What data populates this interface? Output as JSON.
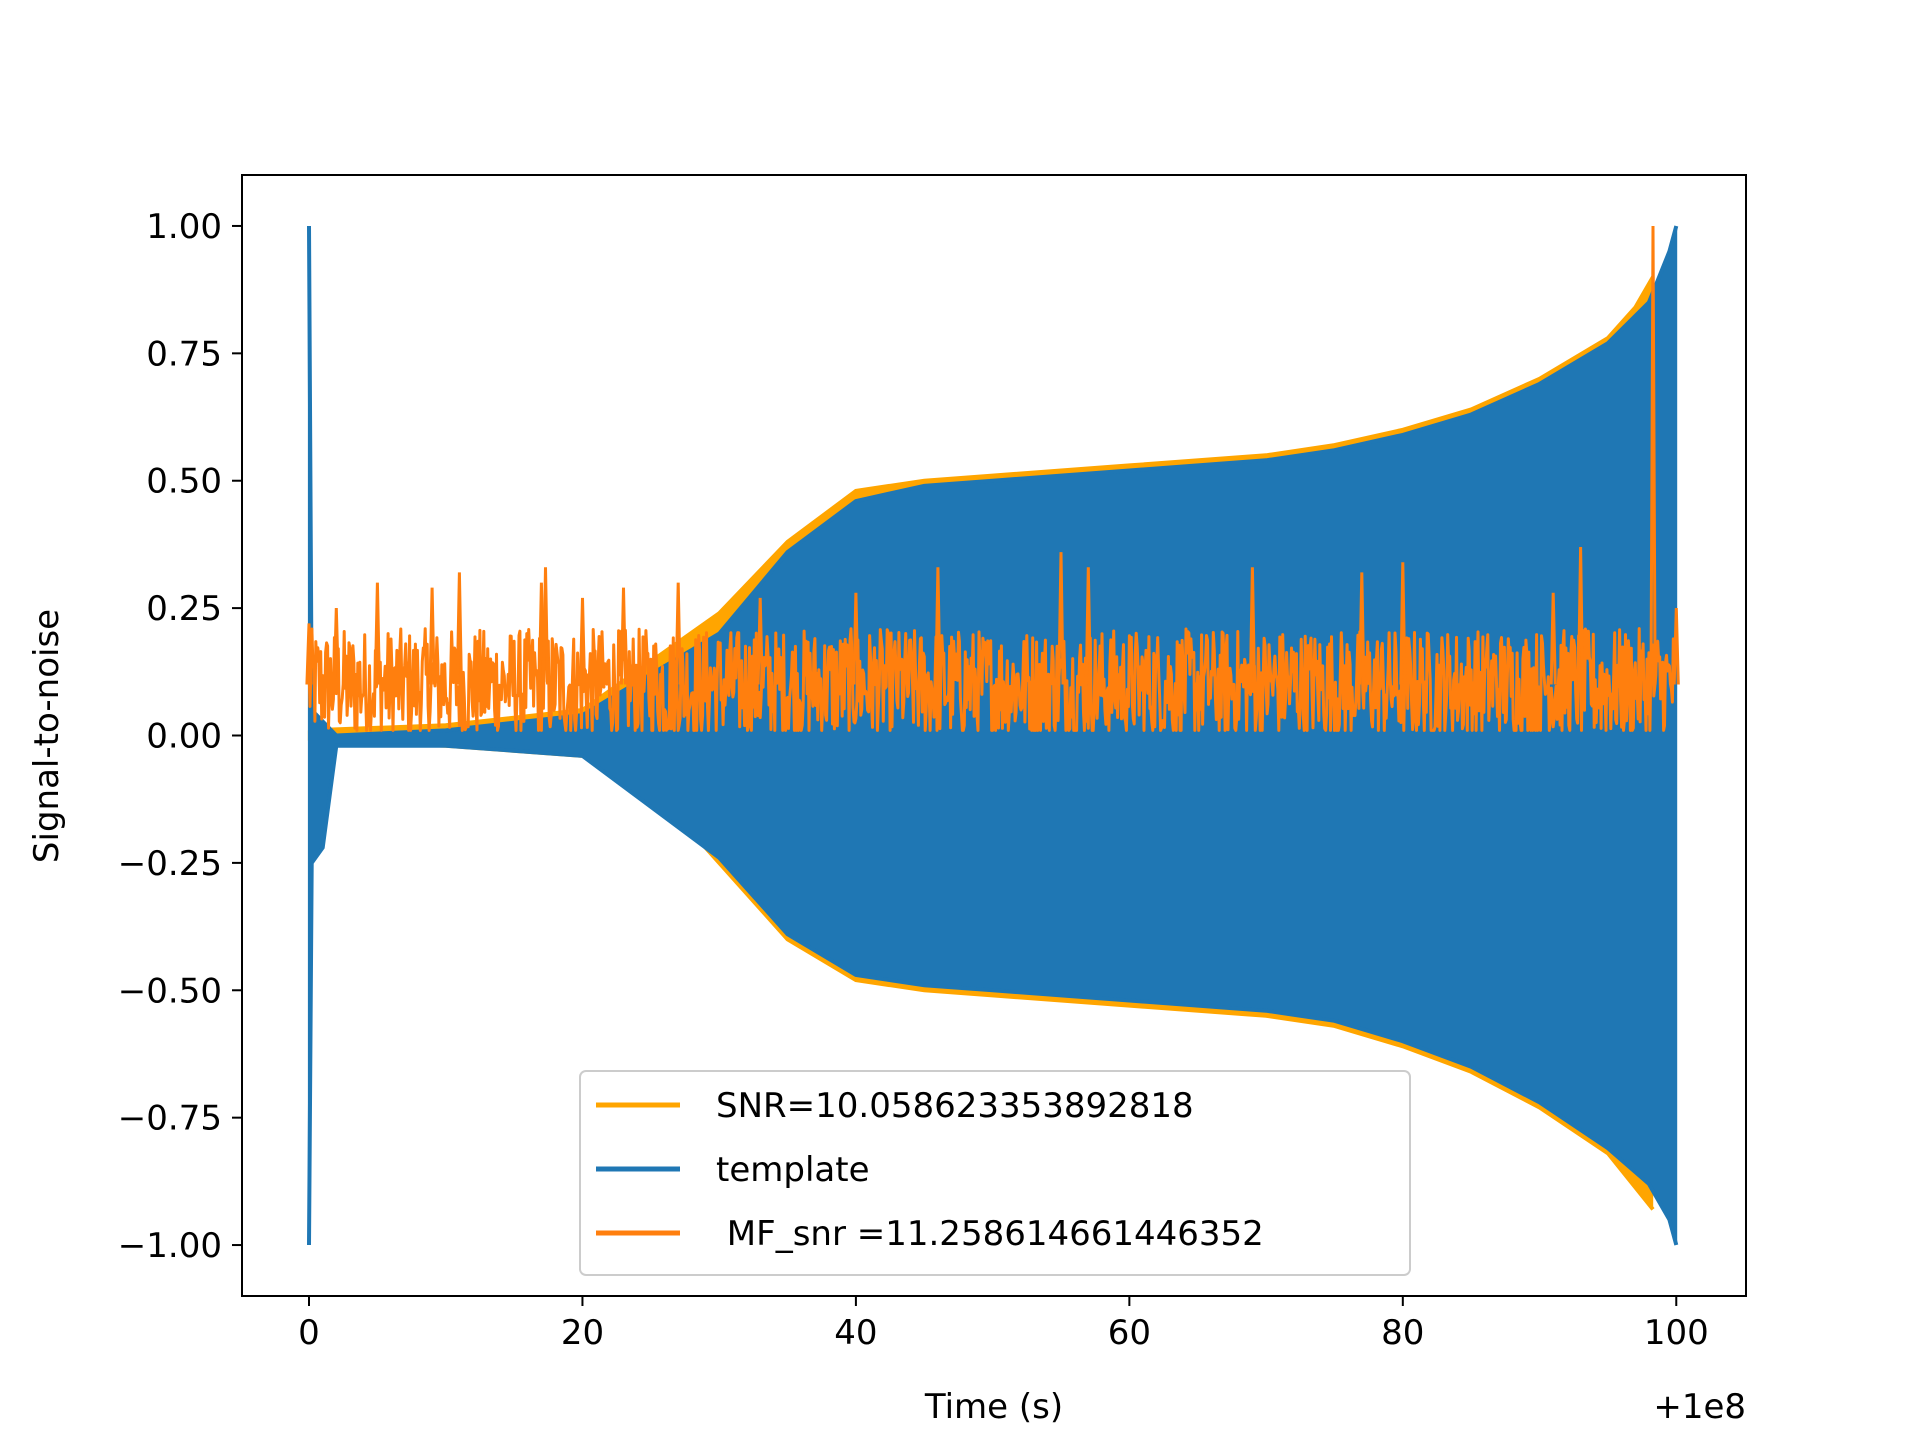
{
  "chart_data": {
    "type": "line",
    "xlabel": "Time (s)",
    "ylabel": "Signal-to-noise",
    "x_offset_label": "+1e8",
    "xlim": [
      -4.9,
      105.1
    ],
    "ylim": [
      -1.1,
      1.1
    ],
    "x_ticks": [
      0,
      20,
      40,
      60,
      80,
      100
    ],
    "x_tick_labels": [
      "0",
      "20",
      "40",
      "60",
      "80",
      "100"
    ],
    "y_ticks": [
      1.0,
      0.75,
      0.5,
      0.25,
      0.0,
      -0.25,
      -0.5,
      -0.75,
      -1.0
    ],
    "y_tick_labels": [
      "1.00",
      "0.75",
      "0.50",
      "0.25",
      "0.00",
      "−0.25",
      "−0.50",
      "−0.75",
      "−1.00"
    ],
    "grid": false,
    "legend_position": "lower-center",
    "series": [
      {
        "name": "SNR=10.058623353892818",
        "color": "#ffa500",
        "role": "envelope",
        "upper": [
          [
            0,
            0.01
          ],
          [
            10,
            0.02
          ],
          [
            20,
            0.05
          ],
          [
            30,
            0.24
          ],
          [
            35,
            0.38
          ],
          [
            40,
            0.48
          ],
          [
            45,
            0.5
          ],
          [
            50,
            0.51
          ],
          [
            60,
            0.53
          ],
          [
            70,
            0.55
          ],
          [
            75,
            0.57
          ],
          [
            80,
            0.6
          ],
          [
            85,
            0.64
          ],
          [
            90,
            0.7
          ],
          [
            95,
            0.78
          ],
          [
            97,
            0.84
          ],
          [
            98.3,
            0.9
          ]
        ],
        "lower": [
          [
            0,
            -0.01
          ],
          [
            10,
            -0.02
          ],
          [
            20,
            -0.04
          ],
          [
            25,
            -0.1
          ],
          [
            30,
            -0.25
          ],
          [
            35,
            -0.4
          ],
          [
            40,
            -0.48
          ],
          [
            45,
            -0.5
          ],
          [
            50,
            -0.51
          ],
          [
            60,
            -0.53
          ],
          [
            70,
            -0.55
          ],
          [
            75,
            -0.57
          ],
          [
            80,
            -0.61
          ],
          [
            85,
            -0.66
          ],
          [
            90,
            -0.73
          ],
          [
            95,
            -0.82
          ],
          [
            98.3,
            -0.93
          ]
        ]
      },
      {
        "name": "template",
        "color": "#1f77b4",
        "role": "envelope",
        "upper": [
          [
            0,
            1.0
          ],
          [
            0.2,
            0.05
          ],
          [
            2,
            0.0
          ],
          [
            10,
            0.01
          ],
          [
            20,
            0.04
          ],
          [
            30,
            0.2
          ],
          [
            35,
            0.36
          ],
          [
            40,
            0.46
          ],
          [
            45,
            0.49
          ],
          [
            50,
            0.5
          ],
          [
            60,
            0.52
          ],
          [
            70,
            0.54
          ],
          [
            75,
            0.56
          ],
          [
            80,
            0.59
          ],
          [
            85,
            0.63
          ],
          [
            90,
            0.69
          ],
          [
            95,
            0.77
          ],
          [
            98,
            0.85
          ],
          [
            99.5,
            0.95
          ],
          [
            100,
            1.0
          ]
        ],
        "lower": [
          [
            0,
            -1.0
          ],
          [
            0.2,
            -0.25
          ],
          [
            1,
            -0.22
          ],
          [
            2,
            -0.02
          ],
          [
            10,
            -0.02
          ],
          [
            20,
            -0.04
          ],
          [
            30,
            -0.24
          ],
          [
            35,
            -0.39
          ],
          [
            40,
            -0.47
          ],
          [
            45,
            -0.49
          ],
          [
            50,
            -0.5
          ],
          [
            60,
            -0.52
          ],
          [
            70,
            -0.54
          ],
          [
            75,
            -0.56
          ],
          [
            80,
            -0.6
          ],
          [
            85,
            -0.65
          ],
          [
            90,
            -0.72
          ],
          [
            95,
            -0.81
          ],
          [
            98,
            -0.88
          ],
          [
            99.5,
            -0.95
          ],
          [
            100,
            -1.0
          ]
        ]
      },
      {
        "name": " MF_snr =11.258614661446352",
        "color": "#ff7f0e",
        "role": "noise",
        "x_range": [
          0,
          100
        ],
        "baseline": 0.1,
        "typical_range": [
          0.02,
          0.22
        ],
        "peaks": [
          [
            0,
            0.22
          ],
          [
            2,
            0.25
          ],
          [
            5,
            0.3
          ],
          [
            9,
            0.29
          ],
          [
            11,
            0.32
          ],
          [
            17,
            0.3
          ],
          [
            17.3,
            0.33
          ],
          [
            20,
            0.27
          ],
          [
            23,
            0.29
          ],
          [
            27,
            0.3
          ],
          [
            33,
            0.27
          ],
          [
            40,
            0.28
          ],
          [
            46,
            0.33
          ],
          [
            55,
            0.36
          ],
          [
            57,
            0.33
          ],
          [
            69,
            0.33
          ],
          [
            77,
            0.32
          ],
          [
            80,
            0.34
          ],
          [
            91,
            0.28
          ],
          [
            93,
            0.37
          ],
          [
            98.3,
            1.0
          ],
          [
            100,
            0.25
          ]
        ]
      }
    ]
  }
}
